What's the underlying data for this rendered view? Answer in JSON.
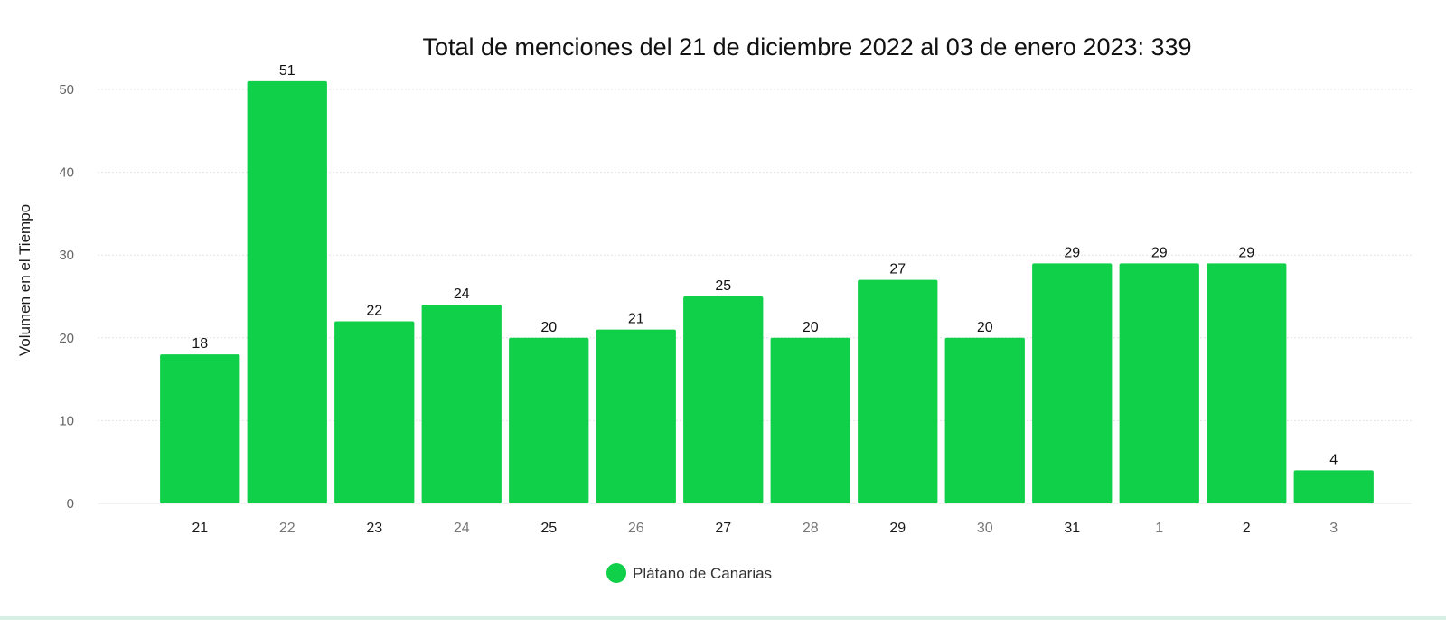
{
  "chart_data": {
    "type": "bar",
    "title": "Total de menciones del 21 de diciembre 2022 al 03 de enero 2023: 339",
    "xlabel": "",
    "ylabel": "Volumen en el Tiempo",
    "categories": [
      "21",
      "22",
      "23",
      "24",
      "25",
      "26",
      "27",
      "28",
      "29",
      "30",
      "31",
      "1",
      "2",
      "3"
    ],
    "series": [
      {
        "name": "Plátano de Canarias",
        "values": [
          18,
          51,
          22,
          24,
          20,
          21,
          25,
          20,
          27,
          20,
          29,
          29,
          29,
          4
        ],
        "color": "#10d04a"
      }
    ],
    "ylim": [
      0,
      50
    ],
    "y_ticks": [
      "0",
      "10",
      "20",
      "30",
      "40",
      "50"
    ],
    "grid": true,
    "legend": "bottom-center"
  },
  "colors": {
    "bar": "#10d04a",
    "grid": "#e4e4e4",
    "title": "#111111",
    "tick": "#666666"
  }
}
